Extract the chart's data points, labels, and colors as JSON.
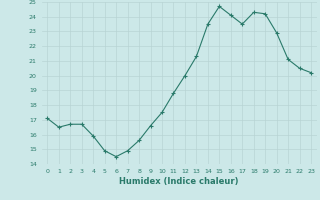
{
  "x": [
    0,
    1,
    2,
    3,
    4,
    5,
    6,
    7,
    8,
    9,
    10,
    11,
    12,
    13,
    14,
    15,
    16,
    17,
    18,
    19,
    20,
    21,
    22,
    23
  ],
  "y": [
    17.1,
    16.5,
    16.7,
    16.7,
    15.9,
    14.9,
    14.5,
    14.9,
    15.6,
    16.6,
    17.5,
    18.8,
    20.0,
    21.3,
    23.5,
    24.7,
    24.1,
    23.5,
    24.3,
    24.2,
    22.9,
    21.1,
    20.5,
    20.2
  ],
  "xlabel": "Humidex (Indice chaleur)",
  "ylim": [
    14,
    25
  ],
  "yticks": [
    14,
    15,
    16,
    17,
    18,
    19,
    20,
    21,
    22,
    23,
    24,
    25
  ],
  "xtick_labels": [
    "0",
    "1",
    "2",
    "3",
    "4",
    "5",
    "6",
    "7",
    "8",
    "9",
    "10",
    "11",
    "12",
    "13",
    "14",
    "15",
    "16",
    "17",
    "18",
    "19",
    "20",
    "21",
    "22",
    "23"
  ],
  "line_color": "#2a7a6a",
  "marker": "+",
  "bg_color": "#cce8e8",
  "grid_color": "#b8d4d4",
  "text_color": "#2a7a6a"
}
